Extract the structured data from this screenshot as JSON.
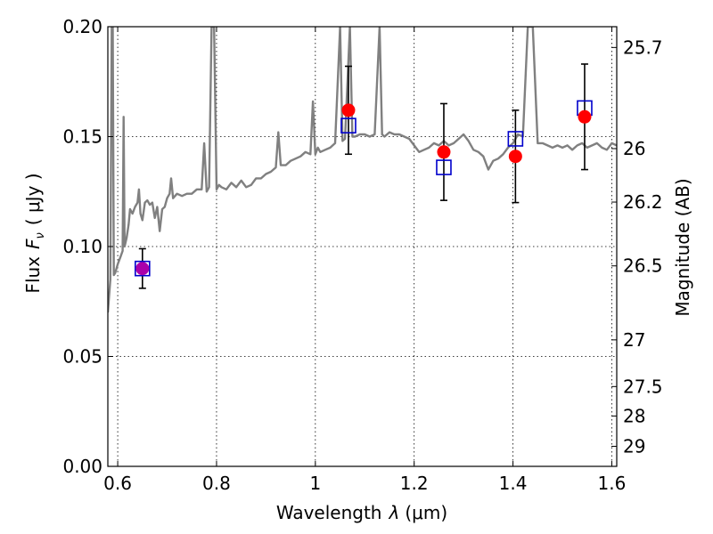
{
  "chart_data": {
    "type": "scatter",
    "xlabel": "Wavelength",
    "xlabel_symbol": "λ",
    "xlabel_unit": "(μm)",
    "ylabel_left": "Flux",
    "ylabel_left_symbol": "F",
    "ylabel_left_sub": "ν",
    "ylabel_left_unit": "( μJy )",
    "ylabel_right": "Magnitude (AB)",
    "xlim": [
      0.58,
      1.61
    ],
    "ylim": [
      0.0,
      0.2
    ],
    "grid": true,
    "grid_style": "dotted",
    "x_ticks": [
      {
        "value": 0.6,
        "label": "0.6"
      },
      {
        "value": 0.8,
        "label": "0.8"
      },
      {
        "value": 1.0,
        "label": "1"
      },
      {
        "value": 1.2,
        "label": "1.2"
      },
      {
        "value": 1.4,
        "label": "1.4"
      },
      {
        "value": 1.6,
        "label": "1.6"
      }
    ],
    "y_ticks": [
      {
        "value": 0.0,
        "label": "0.00"
      },
      {
        "value": 0.05,
        "label": "0.05"
      },
      {
        "value": 0.1,
        "label": "0.10"
      },
      {
        "value": 0.15,
        "label": "0.15"
      },
      {
        "value": 0.2,
        "label": "0.20"
      }
    ],
    "right_ticks": [
      {
        "mag": 25.7,
        "label": "25.7"
      },
      {
        "mag": 26.0,
        "label": "26"
      },
      {
        "mag": 26.2,
        "label": "26.2"
      },
      {
        "mag": 26.5,
        "label": "26.5"
      },
      {
        "mag": 27.0,
        "label": "27"
      },
      {
        "mag": 27.5,
        "label": "27.5"
      },
      {
        "mag": 28.0,
        "label": "28"
      },
      {
        "mag": 29.0,
        "label": "29"
      }
    ],
    "model_spectrum": {
      "color": "#808080",
      "points": [
        [
          0.58,
          0.07
        ],
        [
          0.585,
          0.085
        ],
        [
          0.588,
          0.2
        ],
        [
          0.59,
          0.2
        ],
        [
          0.592,
          0.087
        ],
        [
          0.595,
          0.088
        ],
        [
          0.6,
          0.092
        ],
        [
          0.605,
          0.095
        ],
        [
          0.61,
          0.098
        ],
        [
          0.612,
          0.159
        ],
        [
          0.614,
          0.1
        ],
        [
          0.618,
          0.104
        ],
        [
          0.622,
          0.11
        ],
        [
          0.625,
          0.117
        ],
        [
          0.63,
          0.115
        ],
        [
          0.635,
          0.118
        ],
        [
          0.64,
          0.12
        ],
        [
          0.643,
          0.126
        ],
        [
          0.646,
          0.115
        ],
        [
          0.65,
          0.112
        ],
        [
          0.655,
          0.12
        ],
        [
          0.66,
          0.121
        ],
        [
          0.665,
          0.119
        ],
        [
          0.67,
          0.12
        ],
        [
          0.675,
          0.113
        ],
        [
          0.68,
          0.118
        ],
        [
          0.685,
          0.107
        ],
        [
          0.69,
          0.117
        ],
        [
          0.695,
          0.118
        ],
        [
          0.7,
          0.122
        ],
        [
          0.705,
          0.124
        ],
        [
          0.708,
          0.131
        ],
        [
          0.712,
          0.122
        ],
        [
          0.72,
          0.124
        ],
        [
          0.73,
          0.123
        ],
        [
          0.74,
          0.124
        ],
        [
          0.75,
          0.124
        ],
        [
          0.76,
          0.126
        ],
        [
          0.77,
          0.126
        ],
        [
          0.775,
          0.147
        ],
        [
          0.78,
          0.125
        ],
        [
          0.785,
          0.127
        ],
        [
          0.79,
          0.2
        ],
        [
          0.795,
          0.2
        ],
        [
          0.8,
          0.126
        ],
        [
          0.805,
          0.128
        ],
        [
          0.81,
          0.127
        ],
        [
          0.82,
          0.126
        ],
        [
          0.83,
          0.129
        ],
        [
          0.84,
          0.127
        ],
        [
          0.85,
          0.13
        ],
        [
          0.86,
          0.127
        ],
        [
          0.87,
          0.128
        ],
        [
          0.88,
          0.131
        ],
        [
          0.89,
          0.131
        ],
        [
          0.9,
          0.133
        ],
        [
          0.91,
          0.134
        ],
        [
          0.92,
          0.136
        ],
        [
          0.925,
          0.152
        ],
        [
          0.93,
          0.137
        ],
        [
          0.94,
          0.137
        ],
        [
          0.95,
          0.139
        ],
        [
          0.96,
          0.14
        ],
        [
          0.97,
          0.141
        ],
        [
          0.98,
          0.143
        ],
        [
          0.99,
          0.142
        ],
        [
          0.995,
          0.166
        ],
        [
          1.0,
          0.142
        ],
        [
          1.005,
          0.145
        ],
        [
          1.01,
          0.143
        ],
        [
          1.02,
          0.144
        ],
        [
          1.03,
          0.145
        ],
        [
          1.04,
          0.147
        ],
        [
          1.05,
          0.2
        ],
        [
          1.055,
          0.148
        ],
        [
          1.06,
          0.149
        ],
        [
          1.07,
          0.2
        ],
        [
          1.075,
          0.15
        ],
        [
          1.08,
          0.15
        ],
        [
          1.09,
          0.151
        ],
        [
          1.1,
          0.151
        ],
        [
          1.11,
          0.15
        ],
        [
          1.12,
          0.151
        ],
        [
          1.13,
          0.2
        ],
        [
          1.135,
          0.151
        ],
        [
          1.14,
          0.15
        ],
        [
          1.15,
          0.152
        ],
        [
          1.16,
          0.151
        ],
        [
          1.17,
          0.151
        ],
        [
          1.18,
          0.15
        ],
        [
          1.19,
          0.149
        ],
        [
          1.2,
          0.146
        ],
        [
          1.21,
          0.143
        ],
        [
          1.22,
          0.144
        ],
        [
          1.23,
          0.145
        ],
        [
          1.24,
          0.147
        ],
        [
          1.25,
          0.146
        ],
        [
          1.26,
          0.148
        ],
        [
          1.27,
          0.146
        ],
        [
          1.28,
          0.147
        ],
        [
          1.29,
          0.149
        ],
        [
          1.3,
          0.151
        ],
        [
          1.31,
          0.148
        ],
        [
          1.32,
          0.144
        ],
        [
          1.33,
          0.143
        ],
        [
          1.34,
          0.141
        ],
        [
          1.35,
          0.135
        ],
        [
          1.36,
          0.139
        ],
        [
          1.37,
          0.14
        ],
        [
          1.38,
          0.142
        ],
        [
          1.39,
          0.145
        ],
        [
          1.4,
          0.147
        ],
        [
          1.405,
          0.149
        ],
        [
          1.41,
          0.151
        ],
        [
          1.42,
          0.15
        ],
        [
          1.43,
          0.2
        ],
        [
          1.44,
          0.2
        ],
        [
          1.45,
          0.147
        ],
        [
          1.46,
          0.147
        ],
        [
          1.47,
          0.146
        ],
        [
          1.48,
          0.145
        ],
        [
          1.49,
          0.146
        ],
        [
          1.5,
          0.145
        ],
        [
          1.51,
          0.146
        ],
        [
          1.52,
          0.144
        ],
        [
          1.53,
          0.146
        ],
        [
          1.54,
          0.147
        ],
        [
          1.55,
          0.145
        ],
        [
          1.56,
          0.146
        ],
        [
          1.57,
          0.147
        ],
        [
          1.58,
          0.145
        ],
        [
          1.59,
          0.144
        ],
        [
          1.6,
          0.147
        ],
        [
          1.61,
          0.146
        ]
      ]
    },
    "observed_points": {
      "color": "#ff0000",
      "points": [
        {
          "x": 1.067,
          "y": 0.162,
          "yerr": 0.02
        },
        {
          "x": 1.26,
          "y": 0.143,
          "yerr": 0.022
        },
        {
          "x": 1.405,
          "y": 0.141,
          "yerr": 0.021
        },
        {
          "x": 1.545,
          "y": 0.159,
          "yerr": 0.024
        }
      ]
    },
    "observed_point_upper": {
      "color": "#aa00aa",
      "point": {
        "x": 0.65,
        "y": 0.09,
        "yerr": 0.009
      }
    },
    "model_photometry": {
      "color": "#0000cc",
      "points": [
        {
          "x": 0.65,
          "y": 0.09
        },
        {
          "x": 1.067,
          "y": 0.155
        },
        {
          "x": 1.26,
          "y": 0.136
        },
        {
          "x": 1.405,
          "y": 0.149
        },
        {
          "x": 1.545,
          "y": 0.163
        }
      ]
    }
  }
}
